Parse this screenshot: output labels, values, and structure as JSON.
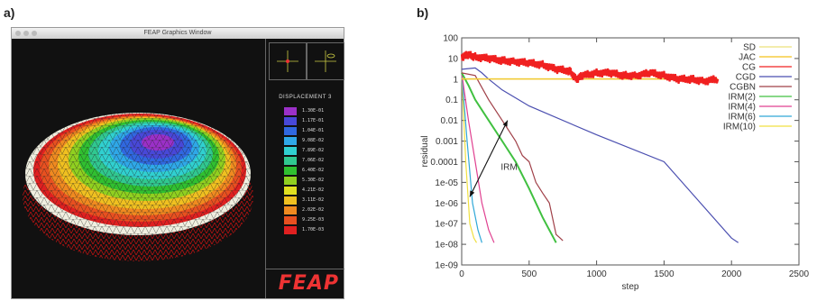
{
  "panel_labels": {
    "a": "a)",
    "b": "b)"
  },
  "feap_window": {
    "title": "FEAP Graphics Window",
    "legend_title": "DISPLACEMENT 3",
    "legend_values": [
      "1.30E-01",
      "1.17E-01",
      "1.04E-01",
      "9.08E-02",
      "7.89E-02",
      "7.06E-02",
      "6.40E-02",
      "5.30E-02",
      "4.21E-02",
      "3.11E-02",
      "2.02E-02",
      "9.25E-03",
      "1.70E-03"
    ],
    "legend_colors": [
      "#9b30c8",
      "#4848d8",
      "#3068e0",
      "#2fa8e8",
      "#30d0d0",
      "#30c890",
      "#30c030",
      "#90d020",
      "#e0e020",
      "#f0c020",
      "#f08a20",
      "#e85020",
      "#e02020"
    ],
    "logo": "FEAP"
  },
  "chart_data": {
    "type": "line",
    "title": "",
    "xlabel": "step",
    "ylabel": "residual",
    "xlim": [
      0,
      2500
    ],
    "ylim_log10": [
      -9,
      2
    ],
    "y_scale": "log",
    "xticks": [
      "0",
      "500",
      "1000",
      "1500",
      "2000",
      "2500"
    ],
    "yticks": [
      "100",
      "10",
      "1",
      "0.1",
      "0.01",
      "0.001",
      "0.0001",
      "1e-05",
      "1e-06",
      "1e-07",
      "1e-08",
      "1e-09"
    ],
    "legend_position": "top-right",
    "annotation": "IRM",
    "series": [
      {
        "name": "SD",
        "color": "#ece07a",
        "x": [
          0,
          1900
        ],
        "y": [
          1.05,
          1.05
        ]
      },
      {
        "name": "JAC",
        "color": "#f3c21b",
        "x": [
          0,
          1900
        ],
        "y": [
          1.0,
          1.0
        ]
      },
      {
        "name": "CG",
        "color": "#f02020",
        "noisy": true,
        "x": [
          0,
          50,
          100,
          200,
          300,
          400,
          500,
          600,
          700,
          800,
          850,
          900,
          1000,
          1100,
          1200,
          1300,
          1400,
          1500,
          1600,
          1700,
          1800,
          1900
        ],
        "y": [
          12,
          15,
          12,
          10,
          8,
          7,
          6,
          5,
          3,
          2.5,
          1,
          1.5,
          2,
          2,
          1.5,
          1.5,
          2,
          1.5,
          1,
          1,
          0.8,
          1
        ]
      },
      {
        "name": "CGD",
        "color": "#4b4fb0",
        "x": [
          0,
          100,
          150,
          200,
          300,
          500,
          1000,
          1500,
          2000,
          2050
        ],
        "y": [
          3,
          3.5,
          2,
          1,
          0.3,
          0.05,
          0.002,
          0.0001,
          2e-08,
          1.2e-08
        ]
      },
      {
        "name": "CGBN",
        "color": "#a04048",
        "x": [
          0,
          100,
          200,
          300,
          400,
          450,
          500,
          550,
          600,
          650,
          700,
          730,
          750
        ],
        "y": [
          2,
          1.5,
          0.1,
          0.01,
          0.001,
          0.0002,
          0.0001,
          1e-05,
          3e-06,
          1e-06,
          3e-08,
          2e-08,
          1.5e-08
        ]
      },
      {
        "name": "IRM(2)",
        "color": "#40c040",
        "x": [
          0,
          50,
          100,
          200,
          300,
          400,
          500,
          600,
          700
        ],
        "y": [
          2,
          0.5,
          0.1,
          0.01,
          0.001,
          0.0001,
          5e-06,
          2e-07,
          1.2e-08
        ]
      },
      {
        "name": "IRM(4)",
        "color": "#e04090",
        "x": [
          0,
          50,
          100,
          150,
          200,
          240
        ],
        "y": [
          2,
          0.01,
          0.0001,
          1e-06,
          5e-08,
          1.2e-08
        ]
      },
      {
        "name": "IRM(6)",
        "color": "#30a8d8",
        "x": [
          0,
          40,
          80,
          120,
          150
        ],
        "y": [
          2,
          0.001,
          1e-06,
          5e-08,
          1.2e-08
        ]
      },
      {
        "name": "IRM(10)",
        "color": "#f0e040",
        "x": [
          0,
          30,
          60,
          90,
          110
        ],
        "y": [
          2,
          0.0001,
          1e-07,
          2e-08,
          1.2e-08
        ]
      }
    ]
  }
}
